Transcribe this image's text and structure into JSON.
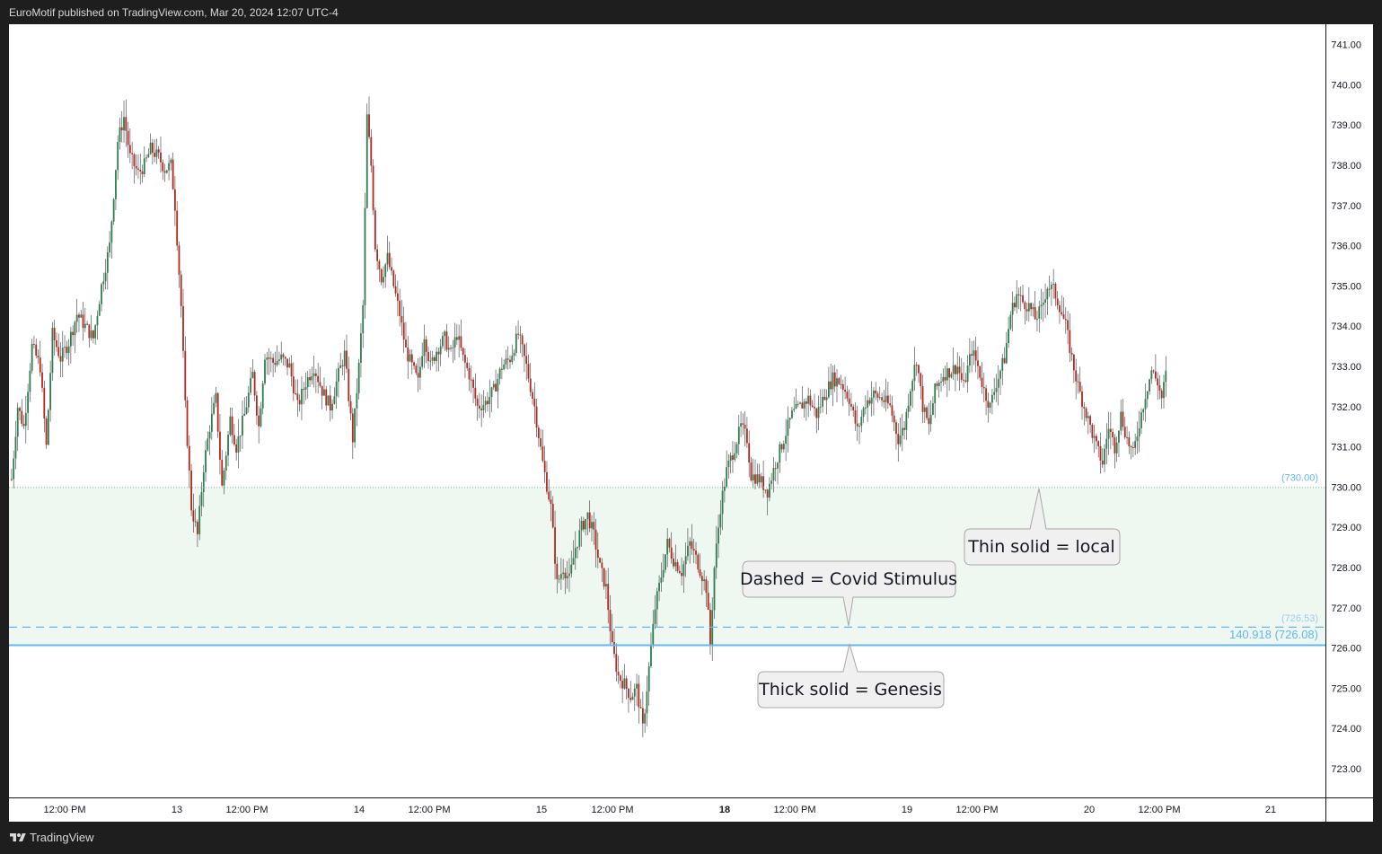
{
  "header": {
    "publisher_line": "EuroMotif published on TradingView.com, Mar 20, 2024 12:07 UTC-4"
  },
  "footer": {
    "brand": "TradingView",
    "logo_icon": "tradingview-logo-icon"
  },
  "colors": {
    "up_candle": "#2e7d4f",
    "down_candle": "#b5261e",
    "zone_fill": "#eef7f0",
    "level_blue": "#64b5f6",
    "level_dark_blue": "#4a90d9",
    "zone_border": "#7fbf9a"
  },
  "chart_data": {
    "type": "candlestick",
    "y_axis": {
      "min": 722.6,
      "max": 741.4,
      "ticks": [
        "723.00",
        "724.00",
        "725.00",
        "726.00",
        "727.00",
        "728.00",
        "729.00",
        "730.00",
        "731.00",
        "732.00",
        "733.00",
        "734.00",
        "735.00",
        "736.00",
        "737.00",
        "738.00",
        "739.00",
        "740.00",
        "741.00"
      ]
    },
    "x_axis": {
      "ticks": [
        {
          "label": "12:00 PM",
          "bold": false
        },
        {
          "label": "13",
          "bold": false
        },
        {
          "label": "12:00 PM",
          "bold": false
        },
        {
          "label": "14",
          "bold": false
        },
        {
          "label": "12:00 PM",
          "bold": false
        },
        {
          "label": "15",
          "bold": false
        },
        {
          "label": "12:00 PM",
          "bold": false
        },
        {
          "label": "18",
          "bold": true
        },
        {
          "label": "12:00 PM",
          "bold": false
        },
        {
          "label": "19",
          "bold": false
        },
        {
          "label": "12:00 PM",
          "bold": false
        },
        {
          "label": "20",
          "bold": false
        },
        {
          "label": "12:00 PM",
          "bold": false
        },
        {
          "label": "21",
          "bold": false
        }
      ]
    },
    "price_path": [
      [
        0,
        730.2
      ],
      [
        3,
        732.0
      ],
      [
        6,
        731.5
      ],
      [
        10,
        733.5
      ],
      [
        14,
        733.0
      ],
      [
        17,
        731.0
      ],
      [
        20,
        733.8
      ],
      [
        24,
        733.2
      ],
      [
        28,
        733.6
      ],
      [
        32,
        734.3
      ],
      [
        36,
        734.0
      ],
      [
        40,
        733.7
      ],
      [
        44,
        735.0
      ],
      [
        48,
        736.0
      ],
      [
        52,
        738.6
      ],
      [
        55,
        739.2
      ],
      [
        58,
        738.2
      ],
      [
        62,
        737.8
      ],
      [
        65,
        738.0
      ],
      [
        68,
        738.4
      ],
      [
        72,
        738.2
      ],
      [
        75,
        737.9
      ],
      [
        78,
        738.0
      ],
      [
        80,
        737.0
      ],
      [
        83,
        734.5
      ],
      [
        85,
        732.0
      ],
      [
        88,
        729.5
      ],
      [
        91,
        728.8
      ],
      [
        94,
        730.5
      ],
      [
        97,
        731.5
      ],
      [
        100,
        732.2
      ],
      [
        103,
        730.0
      ],
      [
        107,
        731.7
      ],
      [
        110,
        731.0
      ],
      [
        114,
        731.8
      ],
      [
        118,
        732.8
      ],
      [
        121,
        731.5
      ],
      [
        124,
        733.3
      ],
      [
        128,
        733.1
      ],
      [
        132,
        733.2
      ],
      [
        136,
        733.0
      ],
      [
        140,
        732.0
      ],
      [
        144,
        732.6
      ],
      [
        148,
        733.0
      ],
      [
        152,
        732.4
      ],
      [
        156,
        732.0
      ],
      [
        160,
        732.8
      ],
      [
        163,
        733.3
      ],
      [
        167,
        731.2
      ],
      [
        170,
        733.0
      ],
      [
        172,
        734.5
      ],
      [
        174,
        739.2
      ],
      [
        176,
        738.0
      ],
      [
        178,
        736.0
      ],
      [
        181,
        735.2
      ],
      [
        184,
        735.7
      ],
      [
        187,
        735.0
      ],
      [
        190,
        734.3
      ],
      [
        193,
        733.4
      ],
      [
        196,
        733.0
      ],
      [
        199,
        732.6
      ],
      [
        202,
        733.8
      ],
      [
        205,
        733.0
      ],
      [
        208,
        733.4
      ],
      [
        212,
        733.7
      ],
      [
        215,
        733.3
      ],
      [
        218,
        733.8
      ],
      [
        221,
        733.2
      ],
      [
        224,
        732.8
      ],
      [
        228,
        732.0
      ],
      [
        232,
        732.1
      ],
      [
        236,
        732.4
      ],
      [
        240,
        733.0
      ],
      [
        244,
        733.2
      ],
      [
        248,
        733.8
      ],
      [
        252,
        733.0
      ],
      [
        256,
        732.0
      ],
      [
        260,
        730.6
      ],
      [
        264,
        729.5
      ],
      [
        267,
        727.6
      ],
      [
        270,
        728.0
      ],
      [
        273,
        727.7
      ],
      [
        276,
        728.5
      ],
      [
        279,
        729.0
      ],
      [
        282,
        729.3
      ],
      [
        285,
        728.8
      ],
      [
        288,
        728.0
      ],
      [
        291,
        727.5
      ],
      [
        294,
        726.0
      ],
      [
        297,
        725.3
      ],
      [
        300,
        725.1
      ],
      [
        303,
        724.8
      ],
      [
        306,
        725.0
      ],
      [
        309,
        724.0
      ],
      [
        312,
        725.5
      ],
      [
        315,
        727.0
      ],
      [
        318,
        727.8
      ],
      [
        321,
        728.6
      ],
      [
        324,
        728.2
      ],
      [
        328,
        727.9
      ],
      [
        332,
        728.6
      ],
      [
        336,
        728.1
      ],
      [
        340,
        727.5
      ],
      [
        342,
        726.1
      ],
      [
        344,
        728.0
      ],
      [
        347,
        729.5
      ],
      [
        350,
        730.4
      ],
      [
        354,
        731.0
      ],
      [
        357,
        731.5
      ],
      [
        360,
        731.2
      ],
      [
        362,
        730.3
      ],
      [
        366,
        730.2
      ],
      [
        370,
        729.9
      ],
      [
        374,
        730.6
      ],
      [
        378,
        731.2
      ],
      [
        382,
        731.8
      ],
      [
        386,
        732.0
      ],
      [
        390,
        732.2
      ],
      [
        394,
        731.8
      ],
      [
        398,
        732.3
      ],
      [
        402,
        732.7
      ],
      [
        406,
        732.6
      ],
      [
        410,
        732.2
      ],
      [
        414,
        731.4
      ],
      [
        418,
        732.1
      ],
      [
        422,
        732.3
      ],
      [
        426,
        732.2
      ],
      [
        430,
        732.0
      ],
      [
        434,
        731.2
      ],
      [
        437,
        731.5
      ],
      [
        440,
        732.5
      ],
      [
        443,
        733.2
      ],
      [
        446,
        732.0
      ],
      [
        449,
        731.5
      ],
      [
        452,
        732.4
      ],
      [
        456,
        732.8
      ],
      [
        460,
        732.9
      ],
      [
        463,
        733.0
      ],
      [
        466,
        732.5
      ],
      [
        470,
        733.4
      ],
      [
        473,
        733.0
      ],
      [
        476,
        732.4
      ],
      [
        479,
        732.0
      ],
      [
        482,
        732.6
      ],
      [
        486,
        733.2
      ],
      [
        489,
        734.3
      ],
      [
        492,
        734.8
      ],
      [
        495,
        734.6
      ],
      [
        498,
        734.5
      ],
      [
        501,
        734.2
      ],
      [
        504,
        734.4
      ],
      [
        507,
        735.0
      ],
      [
        510,
        734.9
      ],
      [
        513,
        734.5
      ],
      [
        516,
        734.0
      ],
      [
        519,
        733.2
      ],
      [
        522,
        732.5
      ],
      [
        525,
        732.0
      ],
      [
        528,
        731.5
      ],
      [
        531,
        731.0
      ],
      [
        534,
        730.6
      ],
      [
        537,
        731.5
      ],
      [
        540,
        731.0
      ],
      [
        543,
        731.8
      ],
      [
        546,
        731.2
      ],
      [
        549,
        730.8
      ],
      [
        552,
        731.6
      ],
      [
        555,
        732.3
      ],
      [
        558,
        732.9
      ],
      [
        561,
        732.6
      ],
      [
        563,
        732.2
      ],
      [
        565,
        732.8
      ]
    ],
    "levels": [
      {
        "name": "local",
        "price": 730.0,
        "label": "(730.00)",
        "style": "thin dotted"
      },
      {
        "name": "covid-stimulus",
        "price": 726.53,
        "label": "(726.53)",
        "style": "dashed"
      },
      {
        "name": "genesis",
        "price": 726.08,
        "label": "140.918 (726.08)",
        "style": "thick solid"
      }
    ],
    "zone": {
      "from": 726.08,
      "to": 730.0
    },
    "annotations": [
      {
        "text": "Thin solid = local"
      },
      {
        "text": "Dashed = Covid Stimulus"
      },
      {
        "text": "Thick solid = Genesis"
      }
    ]
  }
}
